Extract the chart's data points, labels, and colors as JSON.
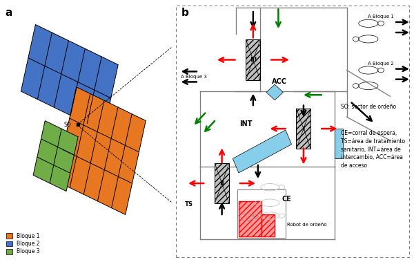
{
  "fig_width": 6.0,
  "fig_height": 3.76,
  "bg_color": "#ffffff",
  "panel_a_label": "a",
  "panel_b_label": "b",
  "legend_items": [
    {
      "label": "Bloque 1",
      "color": "#E87722"
    },
    {
      "label": "Bloque 2",
      "color": "#4472C4"
    },
    {
      "label": "Bloque 3",
      "color": "#70AD47"
    }
  ],
  "orange_color": "#E87722",
  "blue_color": "#4472C4",
  "green_color": "#70AD47",
  "acc_label": "ACC",
  "int_label": "INT",
  "ce_label": "CE",
  "ts_label": "TS",
  "robot_label": "Robot de ordeño",
  "so_def": "SO: sector de ordeño",
  "ce_def": "CE=corral de espera,\nTS=área de tratamiento\nsanitario, INT=área de\nintercambio, ACC=área\nde acceso",
  "a_bloque1": "A Bloque 1",
  "a_bloque2": "A Bloque 2",
  "a_bloque3": "A Bloque 3",
  "wall_color": "#808080",
  "gate_facecolor": "#C0C0C0",
  "water_color": "#87CEEB",
  "robot_red": "#FF9999"
}
